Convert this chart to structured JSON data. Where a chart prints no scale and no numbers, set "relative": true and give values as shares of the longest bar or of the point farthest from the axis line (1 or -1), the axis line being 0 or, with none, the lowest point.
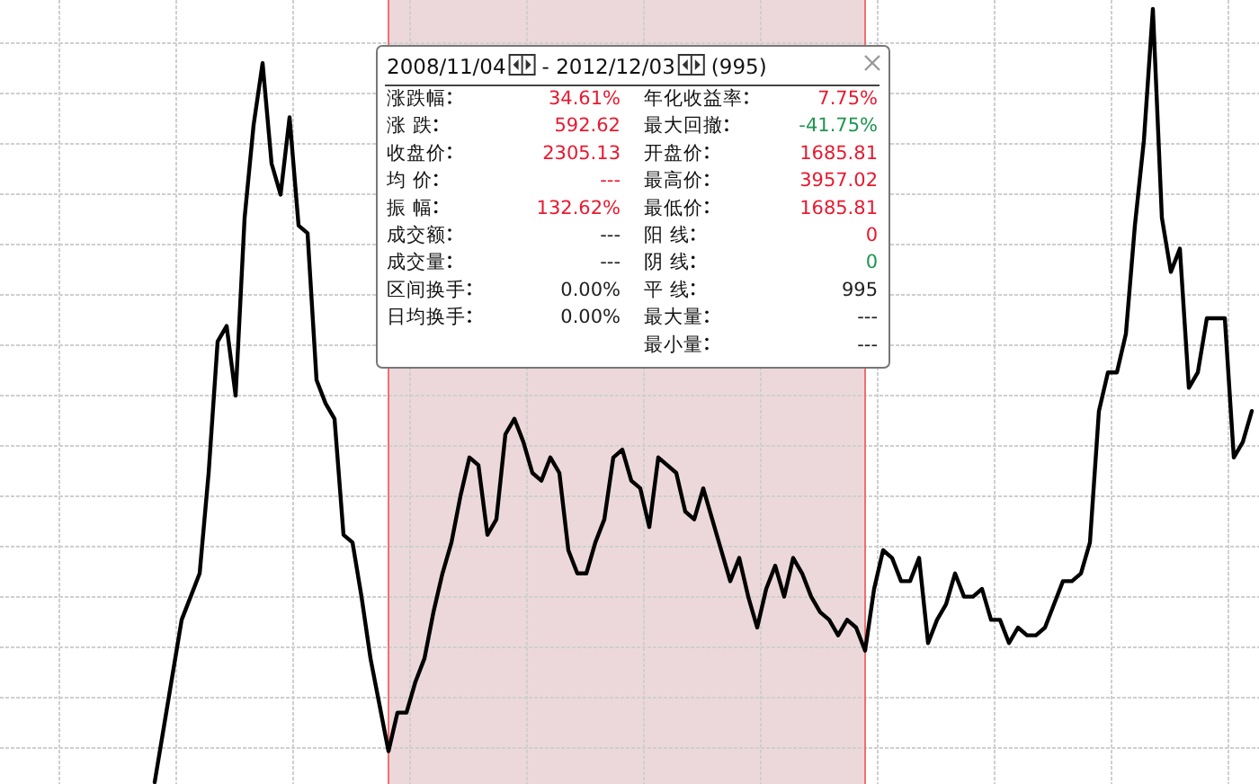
{
  "chart_data": [
    {
      "type": "line",
      "relative": true,
      "color": "#000000",
      "grid": true,
      "categories": [
        null,
        null,
        null,
        null,
        null,
        null,
        null,
        null,
        null,
        null,
        null,
        null,
        null,
        null,
        null,
        null,
        null,
        null,
        null,
        null,
        null,
        null,
        null,
        null,
        null,
        null,
        null,
        null,
        null,
        null,
        null,
        null,
        null,
        null,
        null,
        null,
        null,
        null,
        null,
        null,
        null,
        null,
        null,
        null,
        null,
        null,
        null,
        null,
        null,
        null,
        null,
        null,
        null,
        null,
        null,
        null,
        null,
        null,
        null,
        null,
        null,
        null,
        null,
        null,
        null,
        null,
        null,
        null,
        null,
        null,
        null,
        null,
        null,
        null,
        null,
        null,
        null,
        null,
        null,
        null,
        null,
        null,
        null,
        null,
        null,
        null,
        null,
        null,
        null,
        null,
        null,
        null,
        null,
        null,
        null,
        null,
        null,
        null,
        null,
        null,
        null,
        null,
        null,
        null,
        null,
        null,
        null,
        null,
        null,
        null,
        null,
        null,
        null,
        null,
        null,
        null,
        null,
        null,
        null,
        null,
        null,
        null,
        null
      ],
      "values": [
        0,
        0.07,
        0.14,
        0.21,
        0.24,
        0.27,
        0.4,
        0.57,
        0.59,
        0.5,
        0.73,
        0.85,
        0.93,
        0.8,
        0.76,
        0.86,
        0.72,
        0.71,
        0.52,
        0.49,
        0.47,
        0.32,
        0.31,
        0.24,
        0.16,
        0.1,
        0.04,
        0.09,
        0.09,
        0.13,
        0.16,
        0.22,
        0.27,
        0.31,
        0.37,
        0.42,
        0.41,
        0.32,
        0.34,
        0.45,
        0.47,
        0.44,
        0.4,
        0.39,
        0.42,
        0.4,
        0.3,
        0.27,
        0.27,
        0.31,
        0.34,
        0.42,
        0.43,
        0.39,
        0.38,
        0.33,
        0.42,
        0.41,
        0.4,
        0.35,
        0.34,
        0.38,
        0.34,
        0.3,
        0.26,
        0.29,
        0.24,
        0.2,
        0.25,
        0.28,
        0.24,
        0.29,
        0.27,
        0.24,
        0.22,
        0.21,
        0.19,
        0.21,
        0.2,
        0.17,
        0.25,
        0.3,
        0.29,
        0.26,
        0.26,
        0.29,
        0.18,
        0.21,
        0.23,
        0.27,
        0.24,
        0.24,
        0.25,
        0.21,
        0.21,
        0.18,
        0.2,
        0.19,
        0.19,
        0.2,
        0.23,
        0.26,
        0.26,
        0.27,
        0.31,
        0.48,
        0.53,
        0.53,
        0.58,
        0.72,
        0.83,
        1,
        0.73,
        0.66,
        0.69,
        0.51,
        0.53,
        0.6,
        0.6,
        0.6,
        0.42,
        0.44,
        0.48
      ],
      "line_style": "solid"
    },
    {
      "type": "other",
      "annotations": [
        "2008/11/04",
        "- 2012/12/03",
        "(995)"
      ],
      "categories": [
        "涨跌幅",
        "涨 跌",
        "收盘价",
        "均 价",
        "振 幅",
        "成交额",
        "成交量",
        "区间换手",
        "日均换手"
      ],
      "value_labels": [
        "34.61%",
        "592.62",
        "2305.13",
        "---",
        "132.62%",
        "---",
        "---",
        "0.00%",
        "0.00%"
      ],
      "colors": [
        "#e8192f",
        "#e8192f",
        "#e8192f",
        "#e8192f",
        "#e8192f",
        "#222222",
        "#222222",
        "#222222",
        "#222222"
      ]
    },
    {
      "type": "other",
      "categories": [
        "年化收益率",
        "最大回撤",
        "开盘价",
        "最高价",
        "最低价",
        "阳 线",
        "阴 线",
        "平 线",
        "最大量",
        "最小量"
      ],
      "value_labels": [
        "7.75%",
        "-41.75%",
        "1685.81",
        "3957.02",
        "1685.81",
        "0",
        "0",
        "995",
        "---",
        "---"
      ],
      "colors": [
        "#e8192f",
        "#1e9650",
        "#e8192f",
        "#e8192f",
        "#e8192f",
        "#e8192f",
        "#1e9650",
        "#222222",
        "#222222",
        "#222222"
      ]
    }
  ]
}
